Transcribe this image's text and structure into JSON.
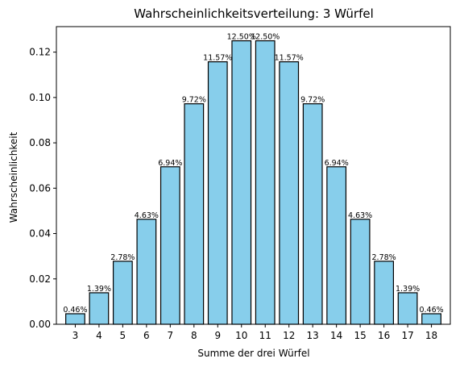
{
  "chart_data": {
    "type": "bar",
    "title": "Wahrscheinlichkeitsverteilung: 3 Würfel",
    "xlabel": "Summe der drei Würfel",
    "ylabel": "Wahrscheinlichkeit",
    "categories": [
      "3",
      "4",
      "5",
      "6",
      "7",
      "8",
      "9",
      "10",
      "11",
      "12",
      "13",
      "14",
      "15",
      "16",
      "17",
      "18"
    ],
    "values": [
      0.00463,
      0.01389,
      0.02778,
      0.0463,
      0.06944,
      0.09722,
      0.11574,
      0.125,
      0.125,
      0.11574,
      0.09722,
      0.06944,
      0.0463,
      0.02778,
      0.01389,
      0.00463
    ],
    "data_labels": [
      "0.46%",
      "1.39%",
      "2.78%",
      "4.63%",
      "6.94%",
      "9.72%",
      "11.57%",
      "12.50%",
      "12.50%",
      "11.57%",
      "9.72%",
      "6.94%",
      "4.63%",
      "2.78%",
      "1.39%",
      "0.46%"
    ],
    "ylim": [
      0,
      0.13125
    ],
    "yticks": [
      0.0,
      0.02,
      0.04,
      0.06,
      0.08,
      0.1,
      0.12
    ],
    "ytick_labels": [
      "0.00",
      "0.02",
      "0.04",
      "0.06",
      "0.08",
      "0.10",
      "0.12"
    ],
    "grid": false,
    "bar_color": "#87ceeb",
    "edge_color": "#000000"
  }
}
